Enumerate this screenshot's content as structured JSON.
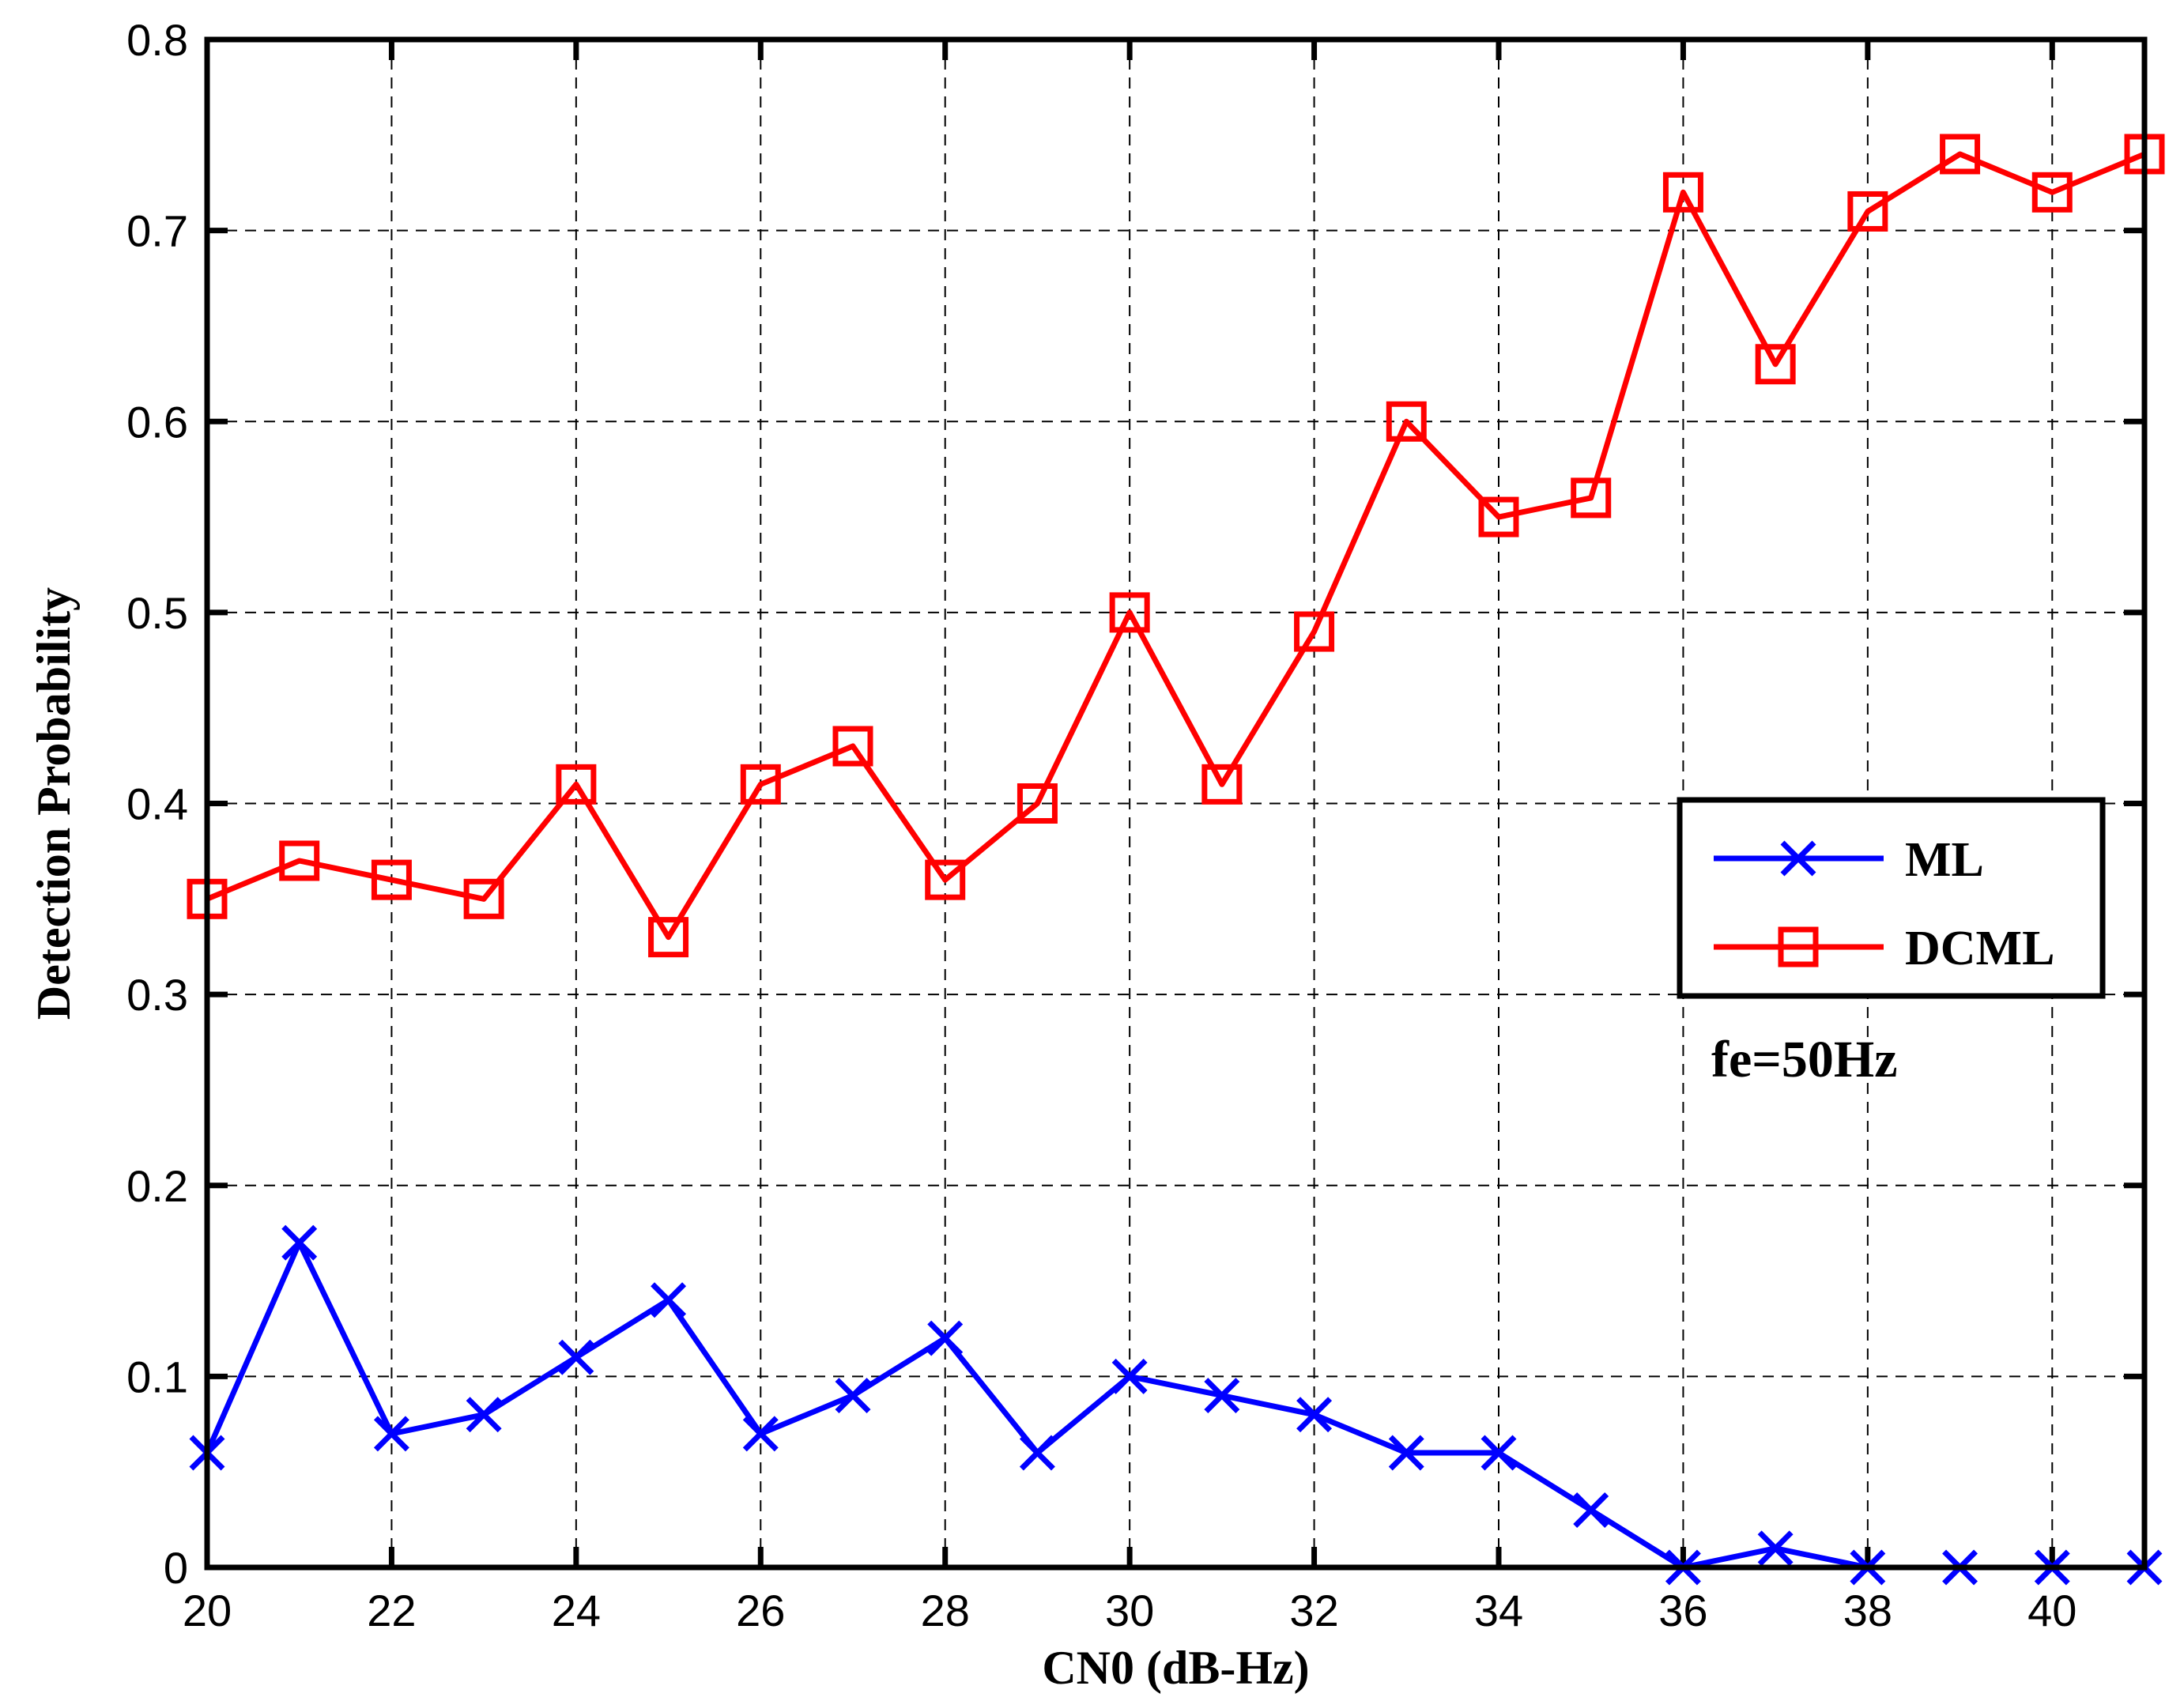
{
  "chart_data": {
    "type": "line",
    "xlabel": "CN0 (dB-Hz)",
    "ylabel": "Detection Probability",
    "xlim": [
      20,
      41
    ],
    "ylim": [
      0,
      0.8
    ],
    "xticks": [
      20,
      22,
      24,
      26,
      28,
      30,
      32,
      34,
      36,
      38,
      40
    ],
    "yticks": [
      0,
      0.1,
      0.2,
      0.3,
      0.4,
      0.5,
      0.6,
      0.7,
      0.8
    ],
    "grid": true,
    "legend_position": "right",
    "x": [
      20,
      21,
      22,
      23,
      24,
      25,
      26,
      27,
      28,
      29,
      30,
      31,
      32,
      33,
      34,
      35,
      36,
      37,
      38,
      39,
      40,
      41
    ],
    "series": [
      {
        "name": "ML",
        "color": "#0000ff",
        "marker": "x",
        "values": [
          0.06,
          0.17,
          0.07,
          0.08,
          0.11,
          0.14,
          0.07,
          0.09,
          0.12,
          0.06,
          0.1,
          0.09,
          0.08,
          0.06,
          0.06,
          0.03,
          0.0,
          0.01,
          0.0,
          0.0,
          0.0,
          0.0
        ]
      },
      {
        "name": "DCML",
        "color": "#ff0000",
        "marker": "square",
        "values": [
          0.35,
          0.37,
          0.36,
          0.35,
          0.41,
          0.33,
          0.41,
          0.43,
          0.36,
          0.4,
          0.5,
          0.41,
          0.49,
          0.6,
          0.55,
          0.56,
          0.72,
          0.63,
          0.71,
          0.74,
          0.72,
          0.74
        ]
      }
    ],
    "annotation": "fe=50Hz"
  }
}
